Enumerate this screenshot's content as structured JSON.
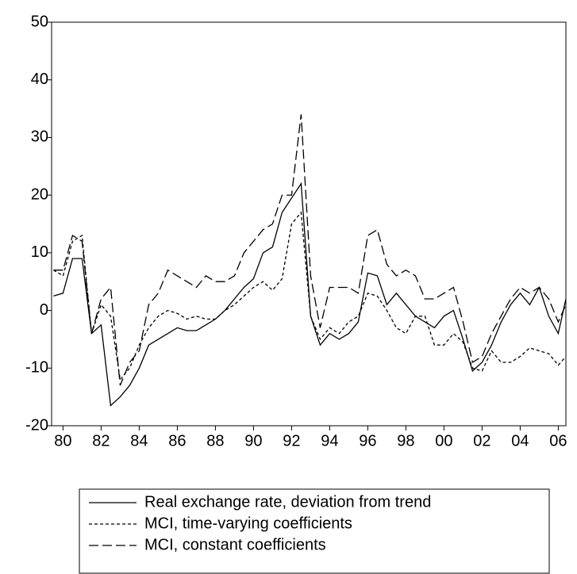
{
  "chart_data": {
    "type": "line",
    "x": [
      1979.5,
      1980,
      1980.5,
      1981,
      1981.5,
      1982,
      1982.5,
      1983,
      1983.5,
      1984,
      1984.5,
      1985,
      1985.5,
      1986,
      1986.5,
      1987,
      1987.5,
      1988,
      1988.5,
      1989,
      1989.5,
      1990,
      1990.5,
      1991,
      1991.5,
      1992,
      1992.5,
      1993,
      1993.5,
      1994,
      1994.5,
      1995,
      1995.5,
      1996,
      1996.5,
      1997,
      1997.5,
      1998,
      1998.5,
      1999,
      1999.5,
      2000,
      2000.5,
      2001,
      2001.5,
      2002,
      2002.5,
      2003,
      2003.5,
      2004,
      2004.5,
      2005,
      2005.5,
      2006,
      2006.4
    ],
    "series": [
      {
        "name": "Real exchange rate, deviation from trend",
        "color": "#000000",
        "dash": "none",
        "values": [
          2.5,
          3,
          9,
          9,
          -4,
          -2.5,
          -16.5,
          -15,
          -13,
          -10,
          -6,
          -5,
          -4,
          -3,
          -3.5,
          -3.5,
          -2.5,
          -1.5,
          0,
          2,
          4,
          5.5,
          10,
          11,
          17,
          19.5,
          22,
          -1,
          -6,
          -4,
          -5,
          -4,
          -2,
          6.5,
          6,
          1,
          3,
          1,
          -1,
          -2,
          -3,
          -1,
          0,
          -5,
          -10.5,
          -9,
          -6,
          -2,
          1,
          3,
          1,
          4,
          -1,
          -4,
          2
        ]
      },
      {
        "name": "MCI, time-varying coefficients",
        "color": "#000000",
        "dash": "4 3",
        "values": [
          7,
          6,
          12,
          13,
          -4,
          1,
          -1,
          -12,
          -10,
          -6,
          -3,
          -1,
          0,
          -0.5,
          -1.5,
          -1,
          -1.5,
          -1.5,
          0,
          1,
          2.5,
          4,
          5,
          3.5,
          5.5,
          15,
          17,
          -1,
          -5,
          -3,
          -4,
          -2,
          -1,
          3,
          2.5,
          0,
          -3,
          -4,
          -1,
          -1,
          -6,
          -6,
          -4,
          -5.5,
          -10,
          -10.5,
          -7,
          -9,
          -9,
          -8,
          -6.5,
          -7,
          -7.5,
          -9.5,
          -8
        ]
      },
      {
        "name": "MCI, constant coefficients",
        "color": "#000000",
        "dash": "12 5",
        "values": [
          7,
          7,
          13,
          12,
          -4,
          2,
          4,
          -13,
          -9,
          -7,
          1,
          3,
          7,
          6,
          5,
          4,
          6,
          5,
          5,
          6,
          10,
          12,
          14,
          15,
          20,
          20,
          34,
          6,
          -3,
          4,
          4,
          4,
          3,
          13,
          14,
          8,
          6,
          7,
          6,
          2,
          2,
          3,
          4,
          -2,
          -9,
          -8,
          -4,
          -1,
          2,
          4,
          3,
          4,
          2,
          -2,
          1
        ]
      }
    ],
    "xlim": [
      1979.4,
      2006.4
    ],
    "xticks": [
      {
        "value": 1980,
        "label": "80"
      },
      {
        "value": 1982,
        "label": "82"
      },
      {
        "value": 1984,
        "label": "84"
      },
      {
        "value": 1986,
        "label": "86"
      },
      {
        "value": 1988,
        "label": "88"
      },
      {
        "value": 1990,
        "label": "90"
      },
      {
        "value": 1992,
        "label": "92"
      },
      {
        "value": 1994,
        "label": "94"
      },
      {
        "value": 1996,
        "label": "96"
      },
      {
        "value": 1998,
        "label": "98"
      },
      {
        "value": 2000,
        "label": "00"
      },
      {
        "value": 2002,
        "label": "02"
      },
      {
        "value": 2004,
        "label": "04"
      },
      {
        "value": 2006,
        "label": "06"
      }
    ],
    "ylim": [
      -20,
      50
    ],
    "yticks": [
      -20,
      -10,
      0,
      10,
      20,
      30,
      40,
      50
    ],
    "grid": false
  }
}
